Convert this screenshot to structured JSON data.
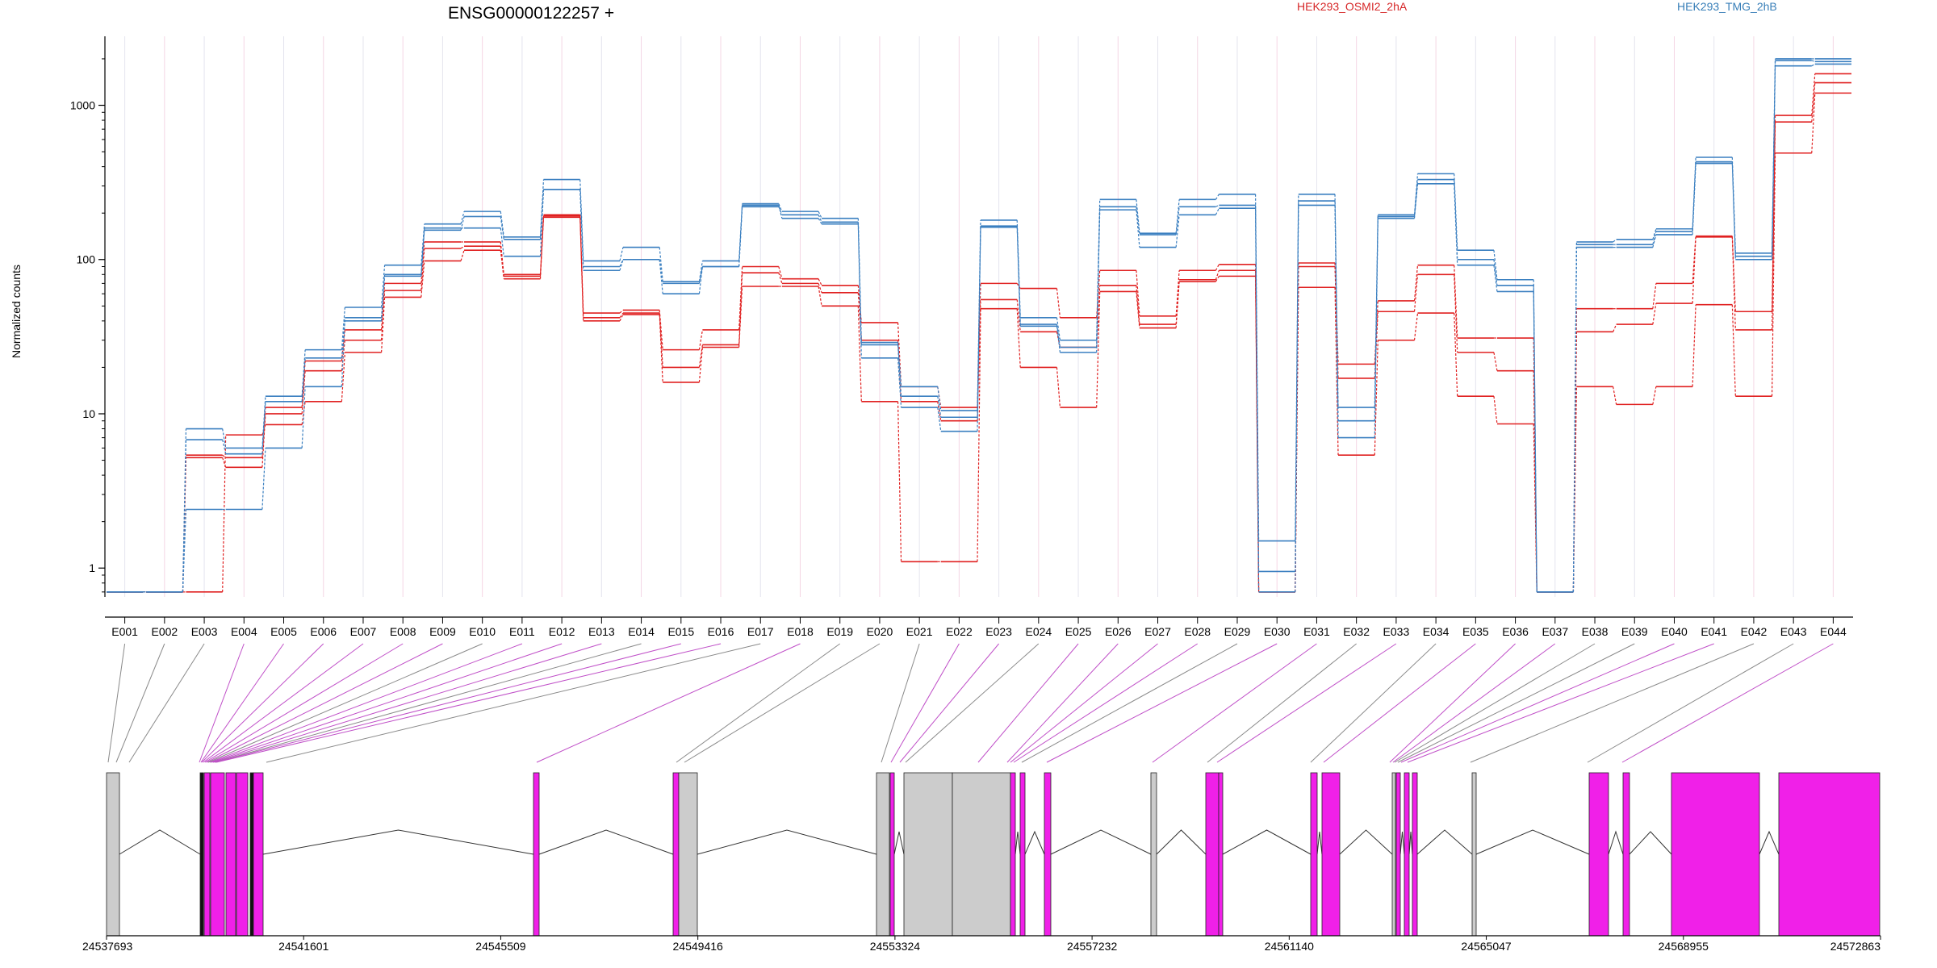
{
  "chart_data": {
    "type": "line",
    "title": "ENSG00000122257 +",
    "ylabel": "Normalized counts",
    "yscale": "log",
    "ylim": [
      0.65,
      2800
    ],
    "yticks": [
      "1",
      "10",
      "100",
      "1000"
    ],
    "grid": true,
    "legend_position": "top-right",
    "colors": {
      "red": "#e31a1c",
      "blue": "#377eb8",
      "exon": "#f020e8",
      "exon_gray": "#cccccc"
    },
    "categories": [
      "E001",
      "E002",
      "E003",
      "E004",
      "E005",
      "E006",
      "E007",
      "E008",
      "E009",
      "E010",
      "E011",
      "E012",
      "E013",
      "E014",
      "E015",
      "E016",
      "E017",
      "E018",
      "E019",
      "E020",
      "E021",
      "E022",
      "E023",
      "E024",
      "E025",
      "E026",
      "E027",
      "E028",
      "E029",
      "E030",
      "E031",
      "E032",
      "E033",
      "E034",
      "E035",
      "E036",
      "E037",
      "E038",
      "E039",
      "E040",
      "E041",
      "E042",
      "E043",
      "E044"
    ],
    "legend": [
      {
        "label": "HEK293_OSMI2_2hA",
        "color": "#d62728"
      },
      {
        "label": "HEK293_TMG_2hB",
        "color": "#377eb8"
      }
    ],
    "series": [
      {
        "group": "red",
        "values": [
          0.7,
          0.7,
          5.4,
          5.2,
          11,
          22,
          35,
          70,
          130,
          130,
          80,
          195,
          45,
          47,
          26,
          35,
          90,
          75,
          68,
          39,
          15,
          11,
          70,
          65,
          42,
          85,
          43,
          85,
          93,
          0.7,
          95,
          21,
          54,
          92,
          31,
          31,
          0.7,
          48,
          48,
          70,
          142,
          46,
          860,
          1600
        ]
      },
      {
        "group": "red",
        "values": [
          0.7,
          0.7,
          5.2,
          4.5,
          10,
          19,
          30,
          63,
          118,
          122,
          78,
          192,
          42,
          45,
          20,
          28,
          82,
          70,
          61,
          30,
          12,
          9,
          55,
          34,
          27,
          68,
          38,
          74,
          85,
          0.7,
          90,
          17,
          46,
          80,
          25,
          19,
          0.7,
          34,
          38,
          52,
          140,
          35,
          780,
          1400
        ]
      },
      {
        "group": "red",
        "values": [
          0.7,
          0.7,
          0.7,
          7.3,
          8.5,
          12,
          25,
          57,
          98,
          115,
          75,
          188,
          40,
          44,
          16,
          27,
          67,
          67,
          50,
          12,
          1.1,
          1.1,
          48,
          20,
          11,
          62,
          36,
          72,
          78,
          0.7,
          66,
          5.4,
          30,
          45,
          13,
          8.6,
          0.7,
          15,
          11.5,
          15,
          51,
          13,
          490,
          1200
        ]
      },
      {
        "group": "blue",
        "values": [
          0.7,
          0.7,
          8.0,
          6.0,
          13,
          26,
          49,
          92,
          170,
          205,
          140,
          330,
          98,
          120,
          72,
          98,
          230,
          205,
          185,
          29,
          15,
          10.5,
          180,
          42,
          30,
          245,
          148,
          245,
          265,
          1.5,
          265,
          11,
          195,
          360,
          115,
          74,
          0.7,
          130,
          135,
          158,
          460,
          110,
          2000,
          2000
        ]
      },
      {
        "group": "blue",
        "values": [
          0.7,
          0.7,
          6.8,
          5.5,
          12,
          23,
          40,
          78,
          155,
          190,
          135,
          285,
          90,
          100,
          70,
          90,
          220,
          195,
          175,
          28,
          13,
          9.5,
          165,
          38,
          27,
          220,
          145,
          220,
          225,
          0.95,
          240,
          9,
          190,
          330,
          100,
          68,
          0.7,
          125,
          125,
          152,
          430,
          105,
          1950,
          1920
        ]
      },
      {
        "group": "blue",
        "values": [
          0.7,
          0.7,
          2.4,
          2.4,
          6.0,
          15,
          42,
          80,
          160,
          160,
          105,
          285,
          85,
          100,
          60,
          90,
          225,
          185,
          170,
          23,
          11,
          7.7,
          162,
          37,
          25,
          210,
          120,
          195,
          215,
          0.7,
          225,
          7,
          185,
          310,
          92,
          62,
          0.7,
          120,
          120,
          145,
          420,
          100,
          1800,
          1850
        ]
      }
    ],
    "gene_model": {
      "coordinate_labels": [
        "24537693",
        "24541601",
        "24545509",
        "24549416",
        "24553324",
        "24557232",
        "24561140",
        "24565047",
        "24568955",
        "24572863"
      ]
    }
  }
}
